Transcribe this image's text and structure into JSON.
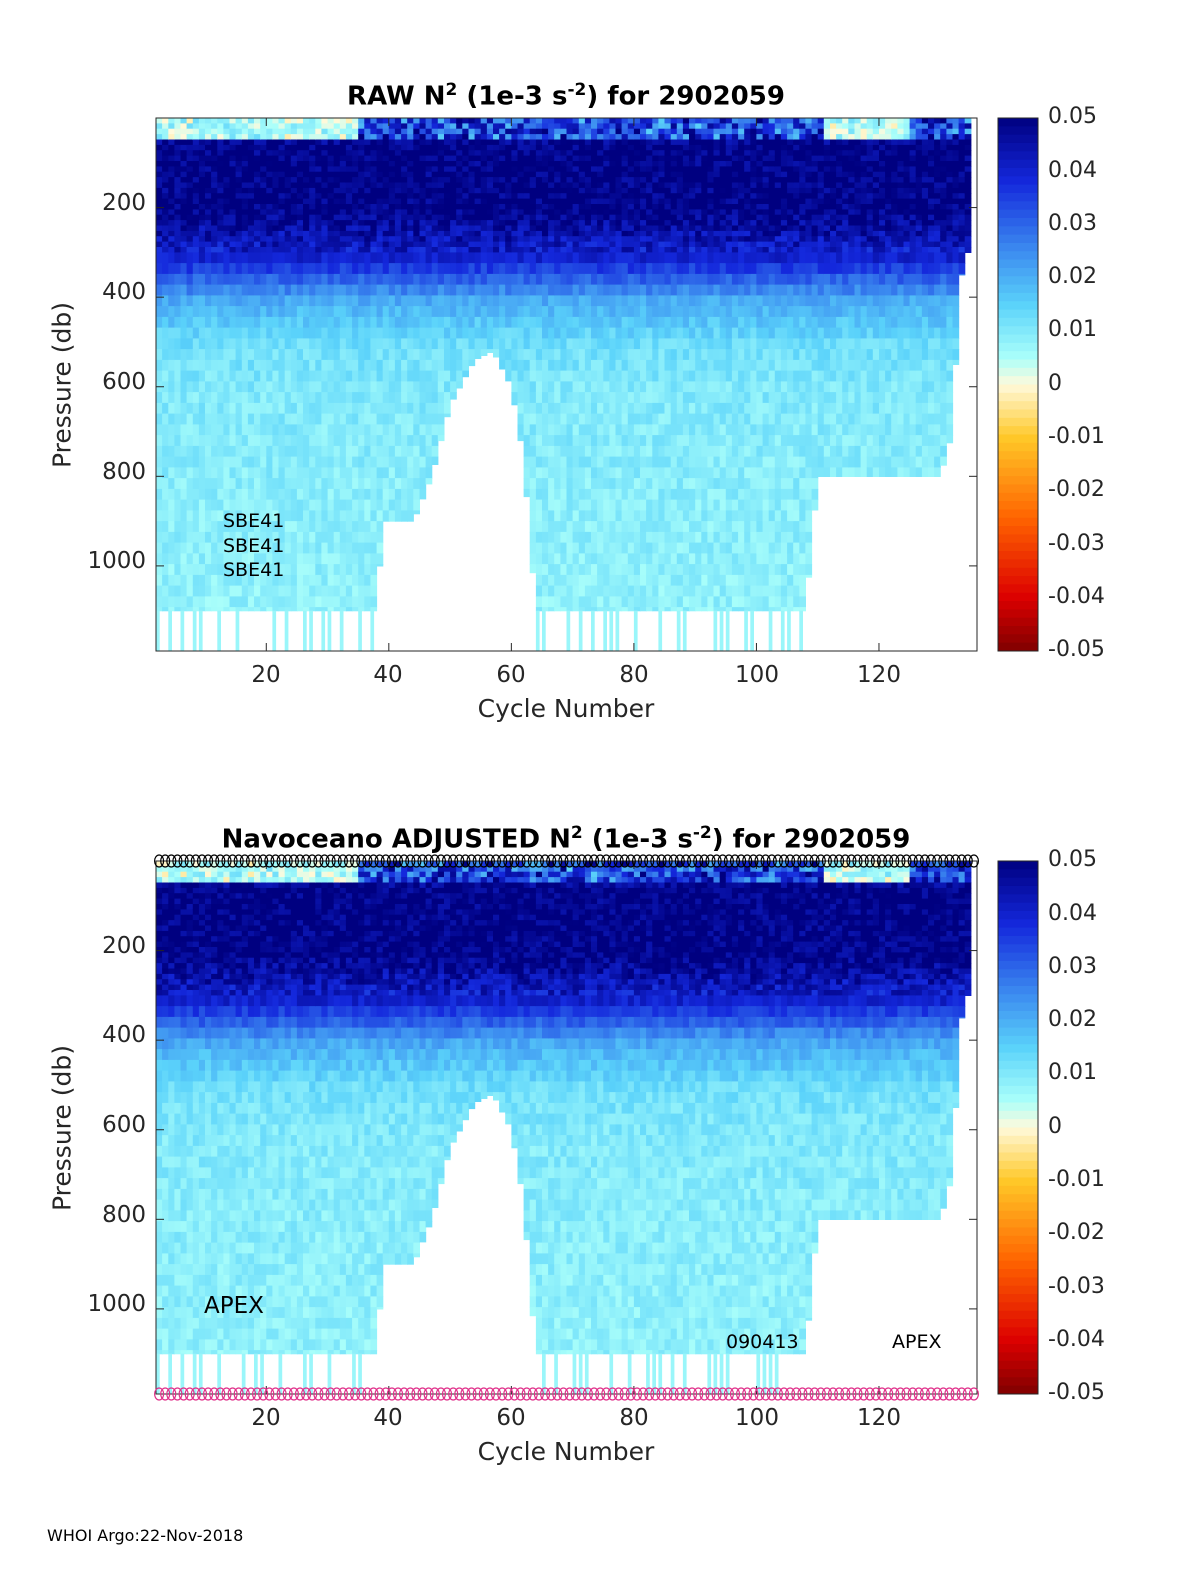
{
  "footer": "WHOI Argo:22-Nov-2018",
  "colorbar": {
    "ticks": [
      "0.05",
      "0.04",
      "0.03",
      "0.02",
      "0.01",
      "0",
      "-0.01",
      "-0.02",
      "-0.03",
      "-0.04",
      "-0.05"
    ],
    "range": [
      -0.05,
      0.05
    ]
  },
  "chart_data": [
    {
      "type": "heatmap",
      "title_prefix": "RAW N",
      "title_sup1": "2",
      "title_mid": " (1e-3 s",
      "title_sup2": "-2",
      "title_suffix": ") for 2902059",
      "xlabel": "Cycle Number",
      "ylabel": "Pressure (db)",
      "xticks": [
        "20",
        "40",
        "60",
        "80",
        "100",
        "120"
      ],
      "yticks": [
        "200",
        "400",
        "600",
        "800",
        "1000"
      ],
      "xlim": [
        2,
        136
      ],
      "ylim": [
        0,
        1190
      ],
      "colorbar_range": [
        -0.05,
        0.05
      ],
      "annotations": [
        "SBE41",
        "SBE41",
        "SBE41"
      ],
      "profile_depth_outline": [
        [
          2,
          1100
        ],
        [
          38,
          1100
        ],
        [
          39,
          900
        ],
        [
          44,
          900
        ],
        [
          47,
          800
        ],
        [
          50,
          640
        ],
        [
          54,
          540
        ],
        [
          57,
          520
        ],
        [
          60,
          600
        ],
        [
          62,
          760
        ],
        [
          64,
          1100
        ],
        [
          108,
          1100
        ],
        [
          110,
          800
        ],
        [
          130,
          800
        ],
        [
          132,
          700
        ],
        [
          133,
          400
        ],
        [
          134,
          300
        ]
      ],
      "value_profile": {
        "pressure": [
          0,
          50,
          100,
          200,
          300,
          400,
          500,
          600,
          800,
          1100
        ],
        "n2": [
          0.005,
          0.05,
          0.05,
          0.05,
          0.04,
          0.02,
          0.012,
          0.01,
          0.009,
          0.008
        ]
      },
      "markers": false
    },
    {
      "type": "heatmap",
      "title_prefix": "Navoceano  ADJUSTED N",
      "title_sup1": "2",
      "title_mid": " (1e-3 s",
      "title_sup2": "-2",
      "title_suffix": ") for 2902059",
      "xlabel": "Cycle Number",
      "ylabel": "Pressure (db)",
      "xticks": [
        "20",
        "40",
        "60",
        "80",
        "100",
        "120"
      ],
      "yticks": [
        "200",
        "400",
        "600",
        "800",
        "1000"
      ],
      "xlim": [
        2,
        136
      ],
      "ylim": [
        0,
        1190
      ],
      "colorbar_range": [
        -0.05,
        0.05
      ],
      "annotations": [
        "APEX",
        "090413",
        "APEX"
      ],
      "profile_depth_outline": [
        [
          2,
          1100
        ],
        [
          38,
          1100
        ],
        [
          39,
          900
        ],
        [
          44,
          900
        ],
        [
          47,
          800
        ],
        [
          50,
          640
        ],
        [
          54,
          540
        ],
        [
          57,
          520
        ],
        [
          60,
          600
        ],
        [
          62,
          760
        ],
        [
          64,
          1100
        ],
        [
          108,
          1100
        ],
        [
          110,
          800
        ],
        [
          130,
          800
        ],
        [
          132,
          700
        ],
        [
          133,
          400
        ],
        [
          134,
          300
        ]
      ],
      "value_profile": {
        "pressure": [
          0,
          50,
          100,
          200,
          300,
          400,
          500,
          600,
          800,
          1100
        ],
        "n2": [
          0.005,
          0.05,
          0.05,
          0.05,
          0.04,
          0.02,
          0.012,
          0.01,
          0.009,
          0.008
        ]
      },
      "markers": true,
      "marker_top_color": "#000000",
      "marker_bottom_color": "#e0308a"
    }
  ]
}
